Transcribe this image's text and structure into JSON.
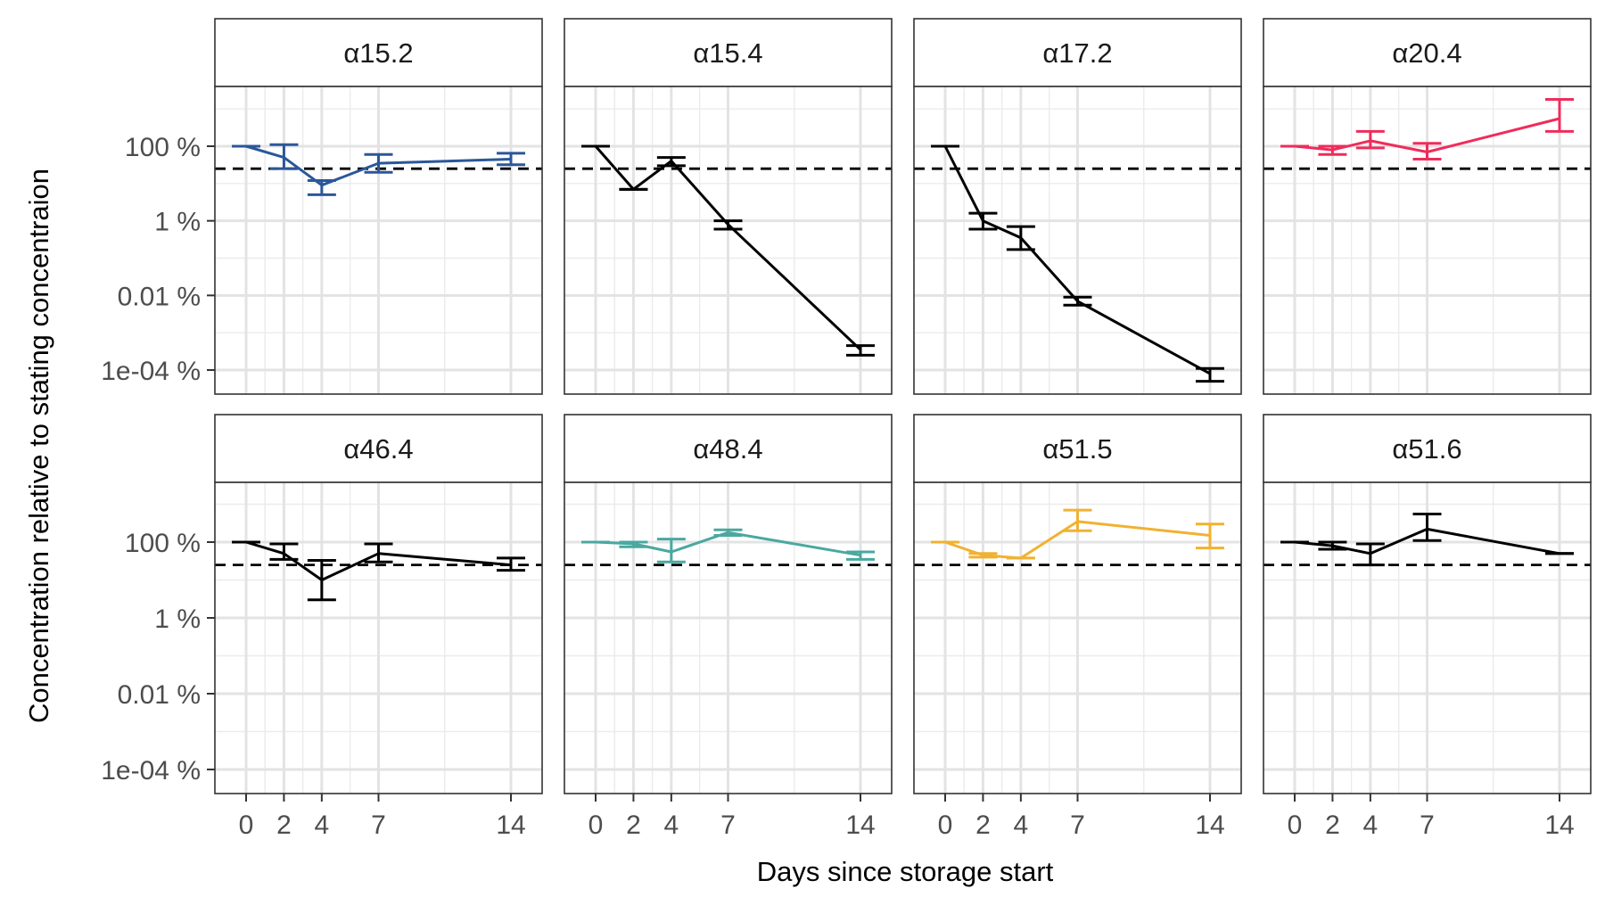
{
  "chart_data": {
    "type": "line",
    "xlabel": "Days since storage start",
    "ylabel": "Concentration relative to stating concentraion",
    "y_scale": "log10",
    "y_ticks": [
      {
        "value": 100,
        "label": "100 %"
      },
      {
        "value": 1,
        "label": "1 %"
      },
      {
        "value": 0.01,
        "label": "0.01 %"
      },
      {
        "value": 0.0001,
        "label": "1e-04 %"
      }
    ],
    "x_ticks": [
      0,
      2,
      4,
      7,
      14
    ],
    "reference_line": {
      "value": 25,
      "style": "dashed"
    },
    "grid": true,
    "panels": [
      {
        "name": "α15.2",
        "color": "#2b579a",
        "points": [
          {
            "x": 0,
            "y": 100,
            "lo": 100,
            "hi": 100
          },
          {
            "x": 2,
            "y": 50,
            "lo": 25,
            "hi": 110
          },
          {
            "x": 4,
            "y": 9,
            "lo": 5,
            "hi": 12
          },
          {
            "x": 7,
            "y": 35,
            "lo": 20,
            "hi": 60
          },
          {
            "x": 14,
            "y": 45,
            "lo": 32,
            "hi": 65
          }
        ]
      },
      {
        "name": "α15.4",
        "color": "#000000",
        "points": [
          {
            "x": 0,
            "y": 100,
            "lo": 100,
            "hi": 100
          },
          {
            "x": 2,
            "y": 7,
            "lo": 7,
            "hi": 7
          },
          {
            "x": 4,
            "y": 40,
            "lo": 30,
            "hi": 50
          },
          {
            "x": 7,
            "y": 0.8,
            "lo": 0.6,
            "hi": 1
          },
          {
            "x": 14,
            "y": 0.00035,
            "lo": 0.00025,
            "hi": 0.00045
          }
        ]
      },
      {
        "name": "α17.2",
        "color": "#000000",
        "points": [
          {
            "x": 0,
            "y": 100,
            "lo": 100,
            "hi": 100
          },
          {
            "x": 2,
            "y": 1,
            "lo": 0.6,
            "hi": 1.6
          },
          {
            "x": 4,
            "y": 0.35,
            "lo": 0.17,
            "hi": 0.7
          },
          {
            "x": 7,
            "y": 0.007,
            "lo": 0.0055,
            "hi": 0.009
          },
          {
            "x": 14,
            "y": 8e-05,
            "lo": 5e-05,
            "hi": 0.00011
          }
        ]
      },
      {
        "name": "α20.4",
        "color": "#ef2c5b",
        "points": [
          {
            "x": 0,
            "y": 100,
            "lo": 100,
            "hi": 100
          },
          {
            "x": 2,
            "y": 80,
            "lo": 60,
            "hi": 100
          },
          {
            "x": 4,
            "y": 140,
            "lo": 90,
            "hi": 250
          },
          {
            "x": 7,
            "y": 70,
            "lo": 45,
            "hi": 120
          },
          {
            "x": 14,
            "y": 550,
            "lo": 250,
            "hi": 1800
          }
        ]
      },
      {
        "name": "α46.4",
        "color": "#000000",
        "points": [
          {
            "x": 0,
            "y": 100,
            "lo": 100,
            "hi": 100
          },
          {
            "x": 2,
            "y": 50,
            "lo": 35,
            "hi": 90
          },
          {
            "x": 4,
            "y": 10,
            "lo": 3,
            "hi": 33
          },
          {
            "x": 7,
            "y": 50,
            "lo": 30,
            "hi": 90
          },
          {
            "x": 14,
            "y": 25,
            "lo": 18,
            "hi": 38
          }
        ]
      },
      {
        "name": "α48.4",
        "color": "#4aa8a0",
        "points": [
          {
            "x": 0,
            "y": 100,
            "lo": 100,
            "hi": 100
          },
          {
            "x": 2,
            "y": 90,
            "lo": 75,
            "hi": 100
          },
          {
            "x": 4,
            "y": 55,
            "lo": 30,
            "hi": 120
          },
          {
            "x": 7,
            "y": 180,
            "lo": 150,
            "hi": 210
          },
          {
            "x": 14,
            "y": 45,
            "lo": 35,
            "hi": 55
          }
        ]
      },
      {
        "name": "α51.5",
        "color": "#f0b232",
        "points": [
          {
            "x": 0,
            "y": 100,
            "lo": 100,
            "hi": 100
          },
          {
            "x": 2,
            "y": 45,
            "lo": 40,
            "hi": 50
          },
          {
            "x": 4,
            "y": 38,
            "lo": 38,
            "hi": 38
          },
          {
            "x": 7,
            "y": 350,
            "lo": 200,
            "hi": 700
          },
          {
            "x": 14,
            "y": 150,
            "lo": 70,
            "hi": 300
          }
        ]
      },
      {
        "name": "α51.6",
        "color": "#000000",
        "points": [
          {
            "x": 0,
            "y": 100,
            "lo": 100,
            "hi": 100
          },
          {
            "x": 2,
            "y": 80,
            "lo": 65,
            "hi": 100
          },
          {
            "x": 4,
            "y": 50,
            "lo": 25,
            "hi": 90
          },
          {
            "x": 7,
            "y": 220,
            "lo": 110,
            "hi": 550
          },
          {
            "x": 14,
            "y": 50,
            "lo": 50,
            "hi": 50
          }
        ]
      }
    ]
  }
}
